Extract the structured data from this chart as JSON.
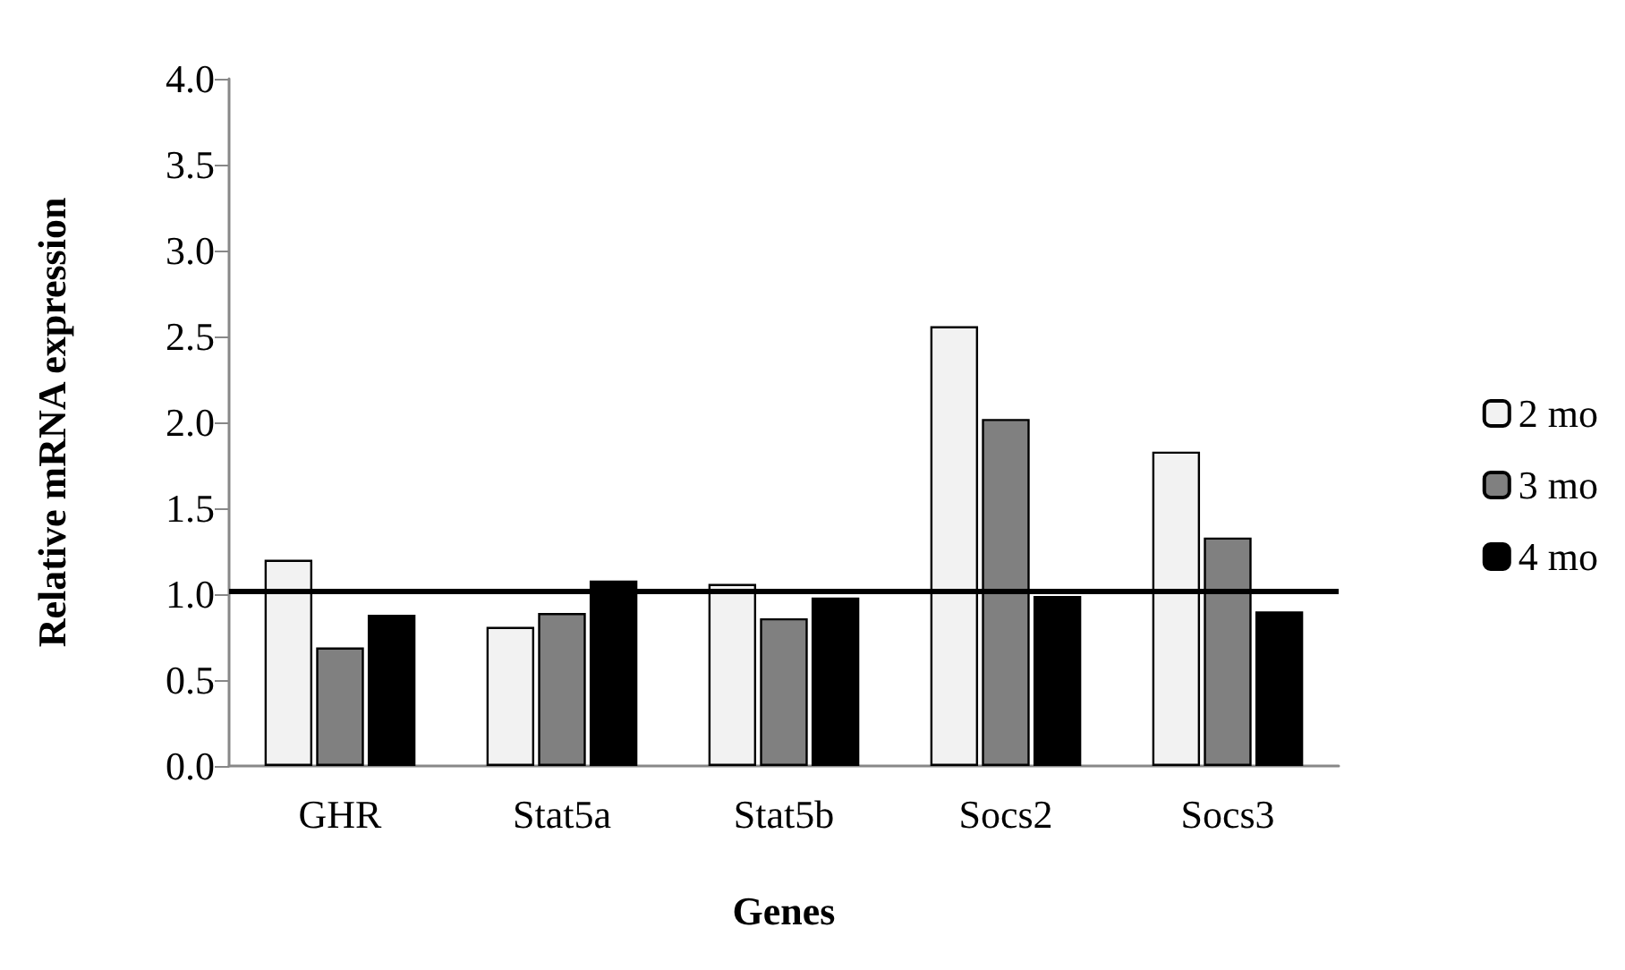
{
  "chart_data": {
    "type": "bar",
    "xlabel": "Genes",
    "ylabel": "Relative mRNA expression",
    "categories": [
      "GHR",
      "Stat5a",
      "Stat5b",
      "Socs2",
      "Socs3"
    ],
    "series": [
      {
        "name": "2 mo",
        "color": "#f2f2f2",
        "values": [
          1.2,
          0.81,
          1.06,
          2.56,
          1.83
        ]
      },
      {
        "name": "3 mo",
        "color": "#808080",
        "values": [
          0.69,
          0.89,
          0.86,
          2.02,
          1.33
        ]
      },
      {
        "name": "4 mo",
        "color": "#000000",
        "values": [
          0.88,
          1.08,
          0.98,
          0.99,
          0.9
        ]
      }
    ],
    "ylim": [
      0,
      4
    ],
    "yticks": [
      {
        "value": 0,
        "label": "0.0"
      },
      {
        "value": 0.5,
        "label": "0.5"
      },
      {
        "value": 1,
        "label": "1.0"
      },
      {
        "value": 1.5,
        "label": "1.5"
      },
      {
        "value": 2,
        "label": "2.0"
      },
      {
        "value": 2.5,
        "label": "2.5"
      },
      {
        "value": 3,
        "label": "3.0"
      },
      {
        "value": 3.5,
        "label": "3.5"
      },
      {
        "value": 4,
        "label": "4.0"
      }
    ],
    "ref_lines": [
      {
        "axis": "y",
        "value": 1.02,
        "color": "#000000"
      }
    ],
    "grid": false,
    "legend": "right"
  }
}
